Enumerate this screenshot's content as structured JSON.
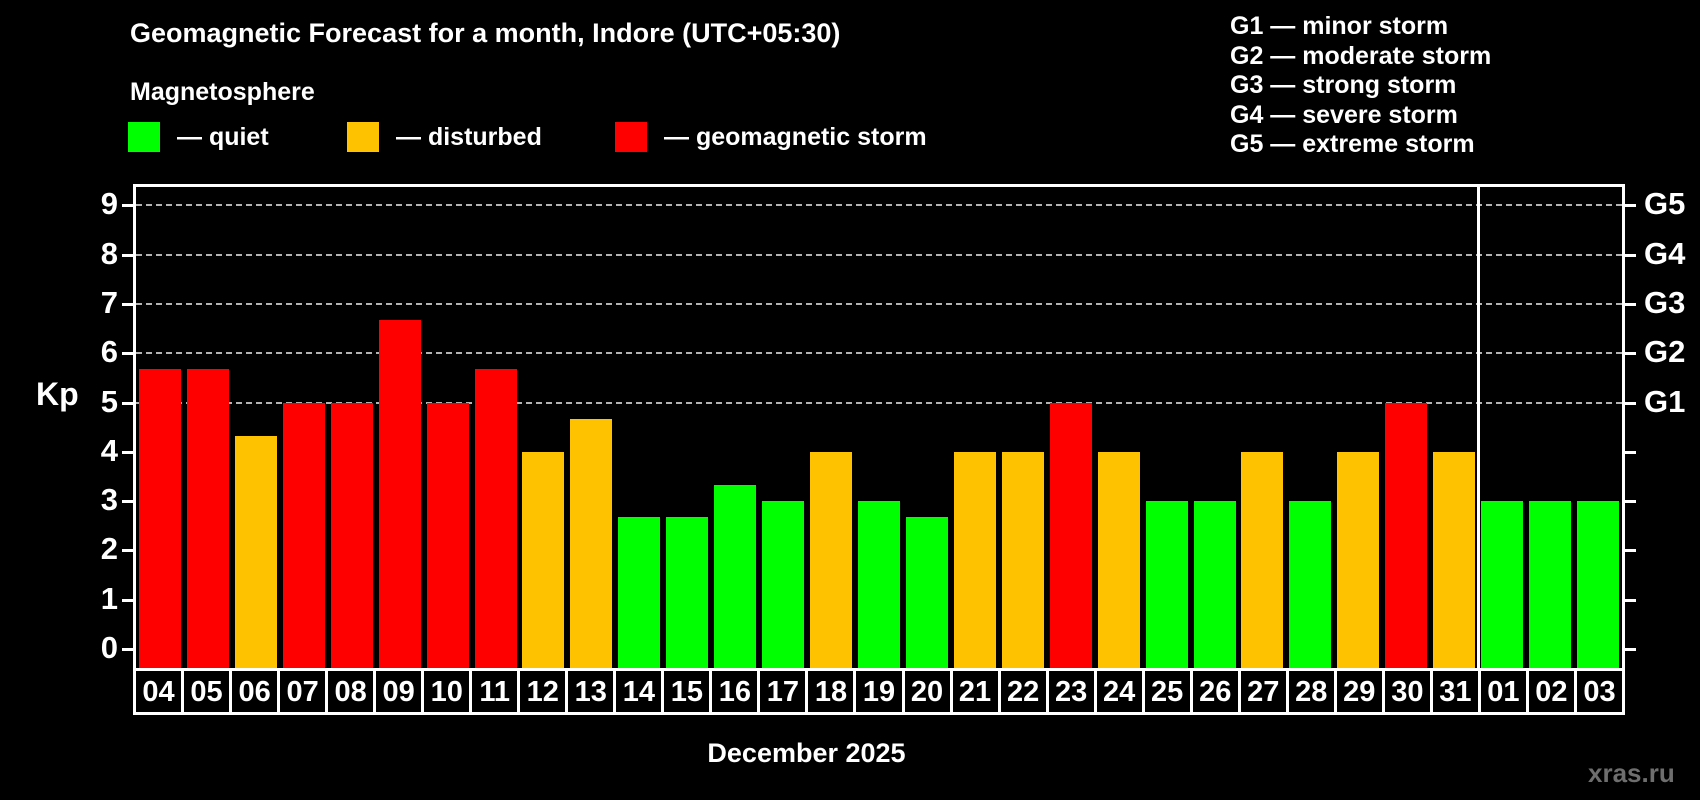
{
  "header": {
    "title": "Geomagnetic Forecast for a month, Indore (UTC+05:30)",
    "subtitle": "Magnetosphere"
  },
  "legend": {
    "items": [
      {
        "key": "quiet",
        "label": "— quiet",
        "color": "#00ff00"
      },
      {
        "key": "disturbed",
        "label": "— disturbed",
        "color": "#ffc200"
      },
      {
        "key": "storm",
        "label": "— geomagnetic storm",
        "color": "#ff0000"
      }
    ]
  },
  "g_legend": {
    "items": [
      "G1 — minor storm",
      "G2 — moderate storm",
      "G3 — strong storm",
      "G4 — severe storm",
      "G5 — extreme storm"
    ]
  },
  "chart_data": {
    "type": "bar",
    "title": "Geomagnetic Forecast for a month, Indore (UTC+05:30)",
    "xlabel": "December 2025",
    "ylabel": "Kp",
    "ylim": [
      0,
      9.4
    ],
    "grid": "dashed horizontal lines at Kp 5-9 only",
    "legend_position": "top",
    "categories": [
      "04",
      "05",
      "06",
      "07",
      "08",
      "09",
      "10",
      "11",
      "12",
      "13",
      "14",
      "15",
      "16",
      "17",
      "18",
      "19",
      "20",
      "21",
      "22",
      "23",
      "24",
      "25",
      "26",
      "27",
      "28",
      "29",
      "30",
      "31",
      "01",
      "02",
      "03"
    ],
    "values": [
      5.67,
      5.67,
      4.33,
      5,
      5,
      6.67,
      5,
      5.67,
      4,
      4.67,
      2.67,
      2.67,
      3.33,
      3,
      4,
      3,
      2.67,
      4,
      4,
      5,
      4,
      3,
      3,
      4,
      3,
      4,
      5,
      4,
      3,
      3,
      3
    ],
    "states": [
      "storm",
      "storm",
      "disturbed",
      "storm",
      "storm",
      "storm",
      "storm",
      "storm",
      "disturbed",
      "disturbed",
      "quiet",
      "quiet",
      "quiet",
      "quiet",
      "disturbed",
      "quiet",
      "quiet",
      "disturbed",
      "disturbed",
      "storm",
      "disturbed",
      "quiet",
      "quiet",
      "disturbed",
      "quiet",
      "disturbed",
      "storm",
      "disturbed",
      "quiet",
      "quiet",
      "quiet"
    ],
    "state_colors": {
      "quiet": "#00ff00",
      "disturbed": "#ffc200",
      "storm": "#ff0000"
    },
    "left_ticks": [
      "0",
      "1",
      "2",
      "3",
      "4",
      "5",
      "6",
      "7",
      "8",
      "9"
    ],
    "right_ticks_kp": [
      0,
      1,
      2,
      3,
      4,
      5,
      6,
      7,
      8,
      9
    ],
    "right_axis_labels": [
      {
        "kp": 5,
        "label": "G1"
      },
      {
        "kp": 6,
        "label": "G2"
      },
      {
        "kp": 7,
        "label": "G3"
      },
      {
        "kp": 8,
        "label": "G4"
      },
      {
        "kp": 9,
        "label": "G5"
      }
    ],
    "gridlines_at": [
      5,
      6,
      7,
      8,
      9
    ],
    "separator_index": 28
  },
  "footer": {
    "watermark": "xras.ru"
  }
}
